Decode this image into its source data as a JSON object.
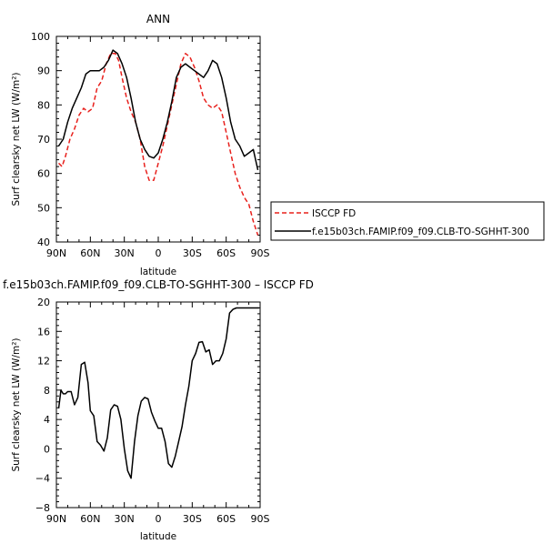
{
  "chart_data": [
    {
      "type": "line",
      "title": "ANN",
      "xlabel": "latitude",
      "ylabel": "Surf clearsky net LW (W/m²)",
      "xticks": [
        "90N",
        "60N",
        "30N",
        "0",
        "30S",
        "60S",
        "90S"
      ],
      "xlim": [
        -90,
        90
      ],
      "ylim": [
        40,
        100
      ],
      "yticks": [
        "40",
        "50",
        "60",
        "70",
        "80",
        "90",
        "100"
      ],
      "legend_position": "right",
      "series": [
        {
          "name": "ISCCP FD",
          "color": "#e8201c",
          "dash": "dashed",
          "x": [
            -88,
            -85,
            -82,
            -78,
            -74,
            -70,
            -66,
            -62,
            -58,
            -54,
            -50,
            -46,
            -42,
            -38,
            -35,
            -32,
            -28,
            -24,
            -20,
            -16,
            -12,
            -8,
            -4,
            0,
            4,
            8,
            12,
            16,
            20,
            24,
            28,
            32,
            36,
            40,
            44,
            48,
            52,
            56,
            60,
            64,
            68,
            72,
            76,
            80,
            84,
            88
          ],
          "y": [
            63,
            62,
            65,
            70,
            73,
            77,
            79,
            78,
            79,
            85,
            87,
            92,
            95,
            95,
            93,
            88,
            82,
            78,
            75,
            70,
            62,
            58,
            58,
            63,
            68,
            74,
            80,
            86,
            92,
            95,
            94,
            91,
            87,
            82,
            80,
            79,
            80,
            78,
            72,
            66,
            60,
            56,
            53,
            51,
            46,
            42
          ]
        },
        {
          "name": "f.e15b03ch.FAMIP.f09_f09.CLB-TO-SGHHT-300",
          "color": "#000000",
          "dash": "solid",
          "x": [
            -88,
            -84,
            -80,
            -76,
            -72,
            -68,
            -64,
            -60,
            -56,
            -52,
            -48,
            -44,
            -40,
            -36,
            -32,
            -28,
            -24,
            -20,
            -16,
            -12,
            -8,
            -4,
            0,
            4,
            8,
            12,
            16,
            20,
            24,
            28,
            32,
            36,
            40,
            44,
            48,
            52,
            56,
            60,
            64,
            68,
            72,
            76,
            80,
            84,
            88
          ],
          "y": [
            68,
            70,
            75,
            79,
            82,
            85,
            89,
            90,
            90,
            90,
            91,
            93,
            96,
            95,
            92,
            88,
            82,
            75,
            70,
            67,
            65,
            64.5,
            66,
            70,
            75,
            81,
            88,
            91,
            92,
            91,
            90,
            89,
            88,
            90,
            93,
            92,
            88,
            82,
            75,
            70,
            68,
            65,
            66,
            67,
            61
          ]
        }
      ]
    },
    {
      "type": "line",
      "title": "f.e15b03ch.FAMIP.f09_f09.CLB-TO-SGHHT-300 – ISCCP FD",
      "xlabel": "latitude",
      "ylabel": "Surf clearsky net LW (W/m²)",
      "xticks": [
        "90N",
        "60N",
        "30N",
        "0",
        "30S",
        "60S",
        "90S"
      ],
      "xlim": [
        -90,
        90
      ],
      "ylim": [
        -8,
        20
      ],
      "yticks": [
        "−8",
        "−4",
        "0",
        "4",
        "8",
        "12",
        "16",
        "20"
      ],
      "series": [
        {
          "color": "#000000",
          "dash": "solid",
          "x": [
            -88,
            -86,
            -84,
            -82,
            -80,
            -77,
            -74,
            -71,
            -68,
            -65,
            -62,
            -60,
            -57,
            -54,
            -51,
            -48,
            -45,
            -42,
            -39,
            -36,
            -33,
            -30,
            -27,
            -24,
            -21,
            -18,
            -15,
            -12,
            -9,
            -6,
            -3,
            0,
            3,
            6,
            9,
            12,
            15,
            18,
            21,
            24,
            27,
            30,
            33,
            36,
            39,
            42,
            45,
            48,
            51,
            54,
            57,
            60,
            63,
            66,
            69,
            72,
            75,
            78,
            81,
            84,
            87,
            89
          ],
          "y": [
            5.5,
            8,
            7.5,
            7.5,
            7.8,
            7.8,
            6,
            7,
            11.5,
            11.8,
            9,
            5.2,
            4.5,
            1,
            0.5,
            -0.3,
            1.5,
            5.3,
            6,
            5.8,
            4,
            0,
            -3,
            -4,
            1,
            4.5,
            6.5,
            7,
            6.8,
            5,
            3.8,
            2.8,
            2.8,
            1,
            -2,
            -2.5,
            -1,
            1,
            3,
            6,
            8.5,
            12,
            13,
            14.5,
            14.6,
            13.2,
            13.5,
            11.5,
            12,
            12,
            13,
            15,
            18.5,
            19,
            19.2,
            19.2,
            19.2,
            19.2,
            19.2,
            19.2,
            19.2,
            19.2
          ]
        }
      ]
    }
  ]
}
